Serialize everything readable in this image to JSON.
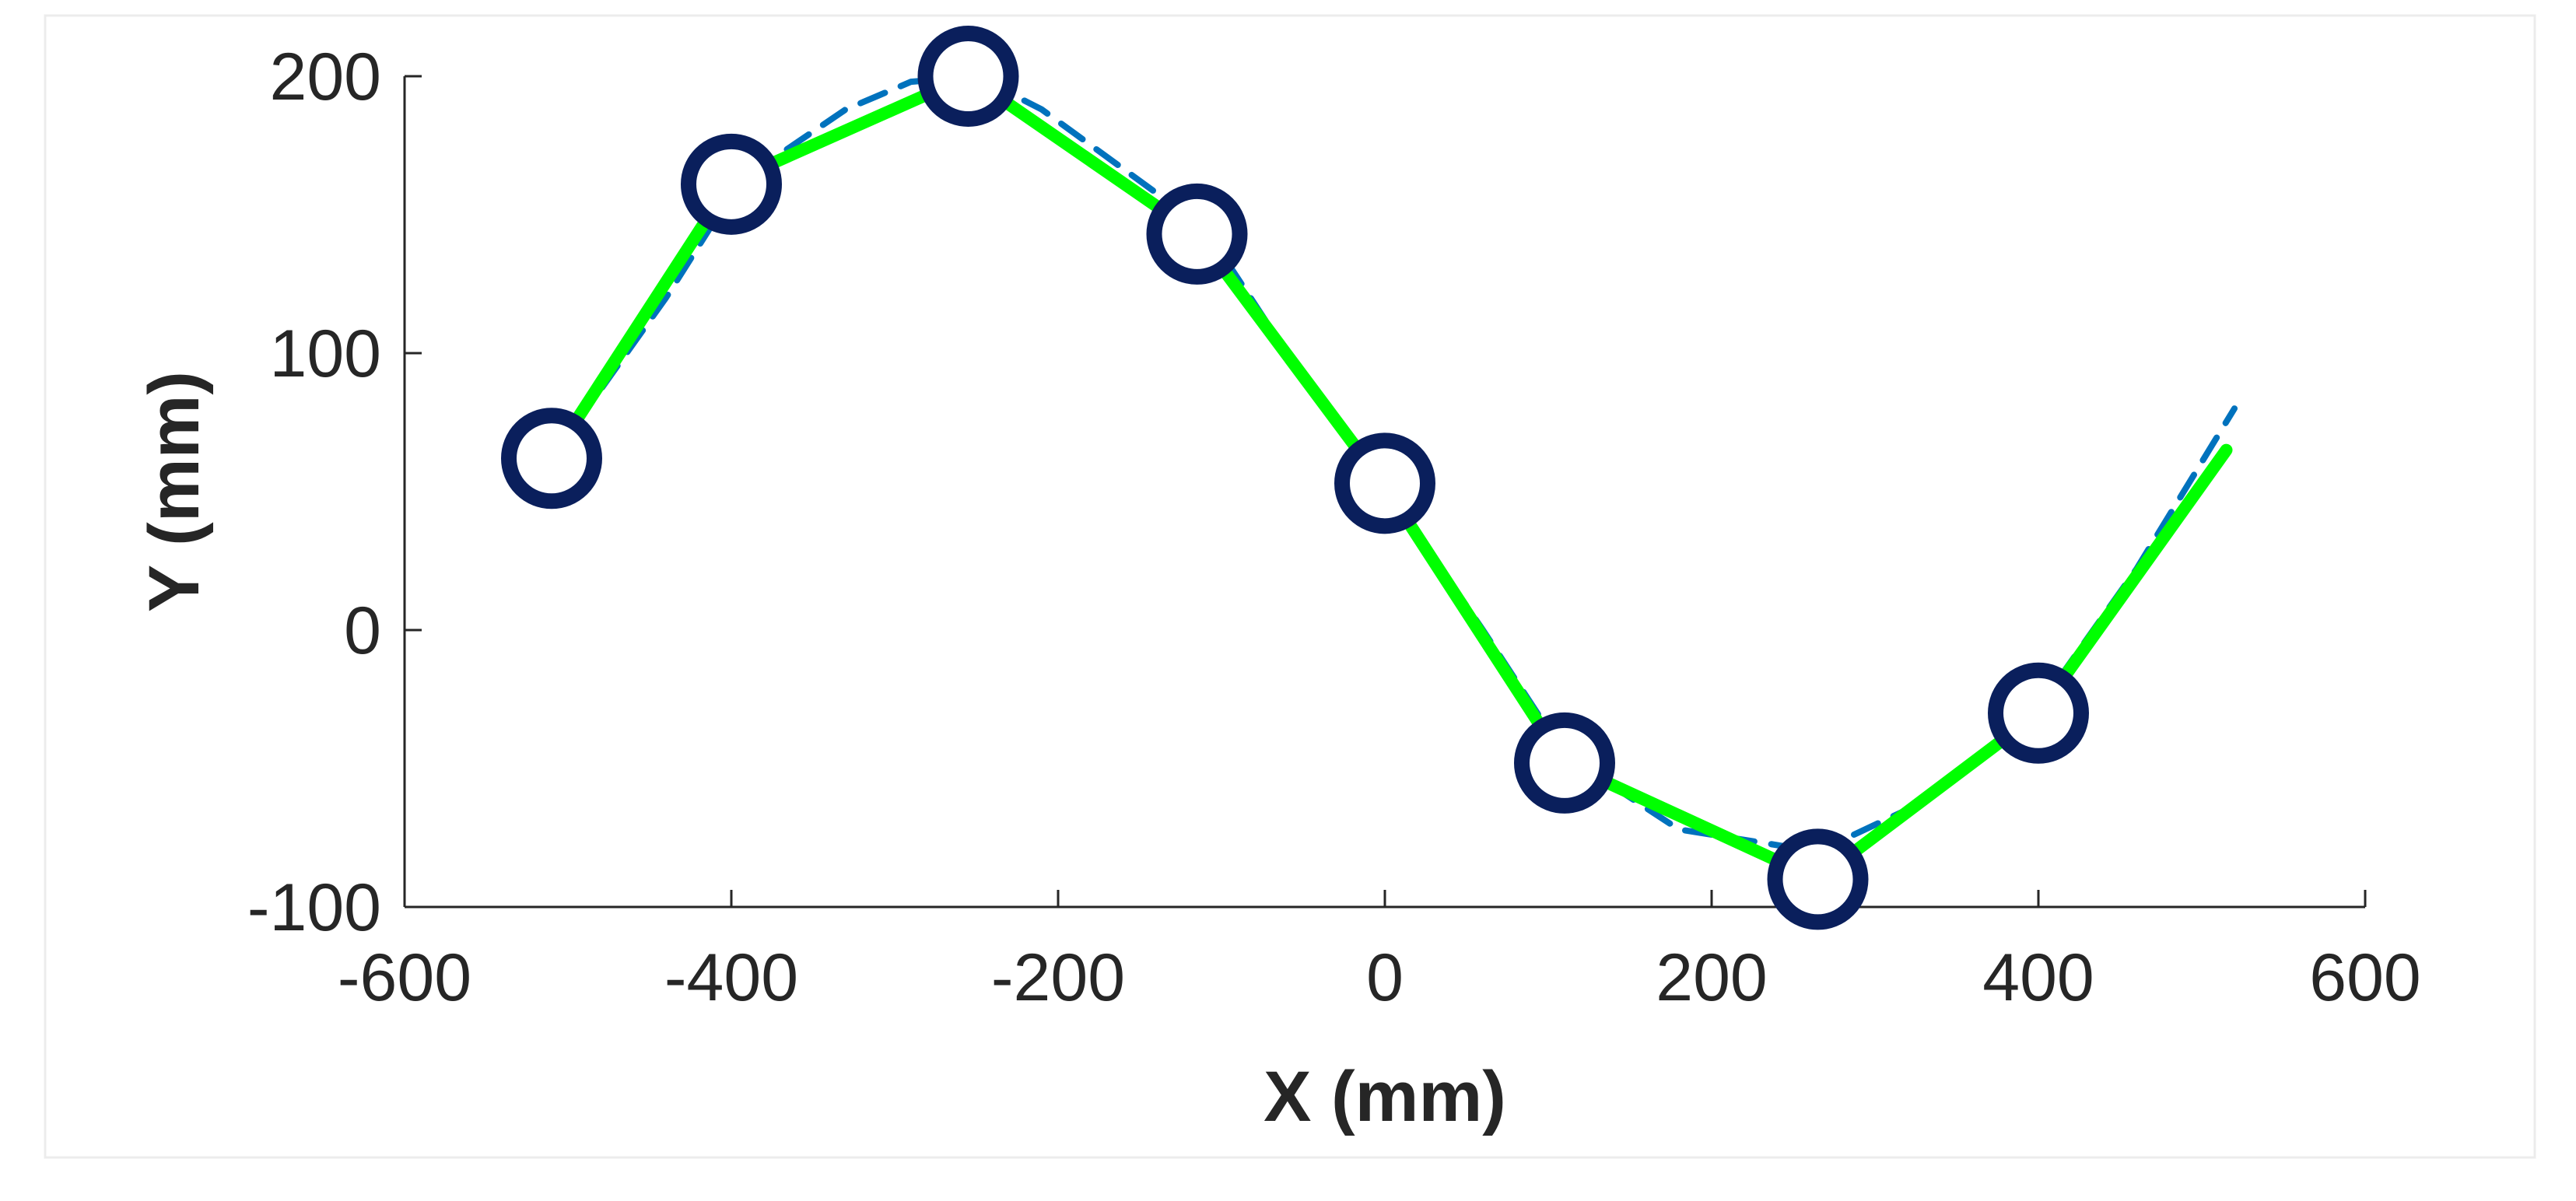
{
  "chart_data": {
    "type": "line",
    "title": "",
    "xlabel": "X (mm)",
    "ylabel": "Y (mm)",
    "xlim": [
      -600,
      600
    ],
    "ylim": [
      -100,
      200
    ],
    "xticks": [
      -600,
      -400,
      -200,
      0,
      200,
      400,
      600
    ],
    "yticks": [
      -100,
      0,
      100,
      200
    ],
    "xtick_labels": [
      "-600",
      "-400",
      "-200",
      "0",
      "200",
      "400",
      "600"
    ],
    "ytick_labels": [
      "-100",
      "0",
      "100",
      "200"
    ],
    "grid": false,
    "legend": "none",
    "series": [
      {
        "style": "dashed",
        "color": "#0072BD",
        "x": [
          -510,
          -440,
          -395,
          -330,
          -290,
          -250,
          -210,
          -110,
          -60,
          0,
          60,
          110,
          180,
          265,
          330,
          400,
          460,
          520
        ],
        "y": [
          62,
          120,
          162,
          188,
          198,
          200,
          188,
          145,
          100,
          52,
          0,
          -45,
          -72,
          -80,
          -62,
          -28,
          22,
          80
        ]
      },
      {
        "style": "solid",
        "color": "#00FF00",
        "x": [
          -510,
          -400,
          -255,
          -115,
          0,
          110,
          265,
          400,
          515
        ],
        "y": [
          62,
          162,
          200,
          143,
          52,
          -48,
          -90,
          -30,
          65
        ]
      },
      {
        "style": "markers",
        "marker": "open-circle",
        "color": "#0A1F5C",
        "x": [
          -510,
          -400,
          -255,
          -115,
          0,
          110,
          265,
          400
        ],
        "y": [
          62,
          161,
          200,
          143,
          53,
          -48,
          -90,
          -30
        ]
      }
    ]
  }
}
